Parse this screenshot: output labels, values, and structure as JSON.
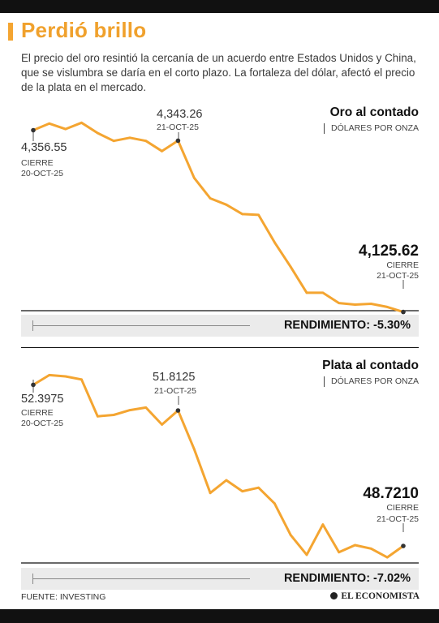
{
  "header": {
    "title": "Perdió brillo",
    "subtitle": "El precio del oro resintió la cercanía de un acuerdo entre Estados Unidos y China, que se vislumbra se daría en el corto plazo. La fortaleza del dólar, afectó el precio de la plata en el mercado."
  },
  "colors": {
    "line": "#f4a531",
    "accent": "#f4a531",
    "title": "#f0a12d",
    "bar": "#111111"
  },
  "chart_data": [
    {
      "type": "line",
      "title": "Oro al contado",
      "unit": "DÓLARES POR ONZA",
      "values": [
        4356.55,
        4365,
        4358,
        4366,
        4353,
        4343,
        4347,
        4343,
        4330,
        4343.26,
        4296,
        4270,
        4262,
        4250,
        4249,
        4214,
        4183,
        4150,
        4150,
        4137,
        4135,
        4136,
        4132,
        4125.62
      ],
      "ylim": [
        4118,
        4388
      ],
      "start_label": {
        "value": "4,356.55",
        "caption": "CIERRE",
        "date": "20-OCT-25"
      },
      "mid_label": {
        "value": "4,343.26",
        "date": "21-OCT-25"
      },
      "end_label": {
        "value": "4,125.62",
        "caption": "CIERRE",
        "date": "21-OCT-25"
      },
      "rendimiento": "RENDIMIENTO: -5.30%"
    },
    {
      "type": "line",
      "title": "Plata al contado",
      "unit": "DÓLARES POR ONZA",
      "values": [
        52.3975,
        52.62,
        52.59,
        52.52,
        51.68,
        51.71,
        51.82,
        51.88,
        51.49,
        51.8125,
        50.93,
        49.93,
        50.22,
        49.97,
        50.05,
        49.69,
        48.97,
        48.52,
        49.21,
        48.58,
        48.74,
        48.66,
        48.46,
        48.721
      ],
      "ylim": [
        48.0,
        52.96
      ],
      "start_label": {
        "value": "52.3975",
        "caption": "CIERRE",
        "date": "20-OCT-25"
      },
      "mid_label": {
        "value": "51.8125",
        "date": "21-OCT-25"
      },
      "end_label": {
        "value": "48.7210",
        "caption": "CIERRE",
        "date": "21-OCT-25"
      },
      "rendimiento": "RENDIMIENTO: -7.02%"
    }
  ],
  "footer": {
    "source": "FUENTE: INVESTING",
    "brand": "EL ECONOMISTA"
  }
}
